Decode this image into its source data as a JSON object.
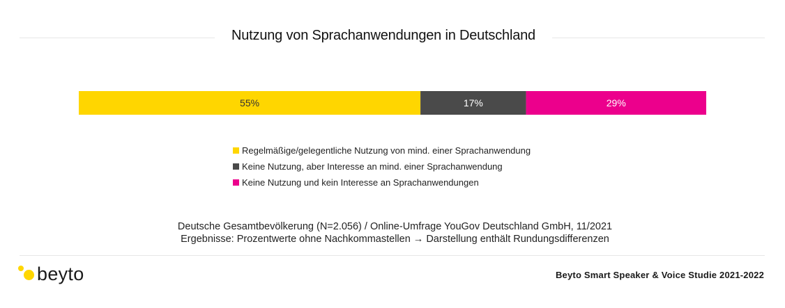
{
  "chart_data": {
    "type": "bar",
    "orientation": "horizontal-stacked",
    "title": "Nutzung von Sprachanwendungen in Deutschland",
    "series": [
      {
        "name": "Regelmäßige/gelegentliche Nutzung von mind. einer Sprachanwendung",
        "value": 55,
        "label": "55%",
        "color": "#FFD600",
        "label_color": "#333333"
      },
      {
        "name": "Keine Nutzung, aber Interesse an mind. einer Sprachanwendung",
        "value": 17,
        "label": "17%",
        "color": "#4A4A4A",
        "label_color": "#ffffff"
      },
      {
        "name": "Keine Nutzung und kein Interesse an Sprachanwendungen",
        "value": 29,
        "label": "29%",
        "color": "#EC008C",
        "label_color": "#ffffff"
      }
    ],
    "grid": false,
    "legend_position": "bottom"
  },
  "source": {
    "line1": "Deutsche Gesamtbevölkerung (N=2.056) / Online-Umfrage YouGov Deutschland GmbH, 11/2021",
    "line2": "Ergebnisse: Prozentwerte ohne Nachkommastellen → Darstellung enthält Rundungsdifferenzen"
  },
  "footer": {
    "logo_text": "beyto",
    "logo_color": "#FFD600",
    "study": "Beyto Smart Speaker & Voice Studie 2021-2022"
  }
}
